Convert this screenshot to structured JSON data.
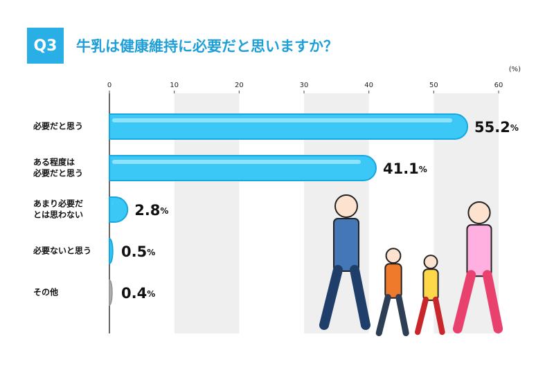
{
  "chart_data": {
    "type": "bar",
    "orientation": "horizontal",
    "badge": "Q3",
    "title": "牛乳は健康維持に必要だと思いますか？",
    "unit": "(%)",
    "categories": [
      [
        "必要だと思う"
      ],
      [
        "ある程度は",
        "必要だと思う"
      ],
      [
        "あまり必要だ",
        "とは思わない"
      ],
      [
        "必要ないと思う"
      ],
      [
        "その他"
      ]
    ],
    "values": [
      55.2,
      41.1,
      2.8,
      0.5,
      0.4
    ],
    "value_labels": [
      "55.2%",
      "41.1%",
      "2.8%",
      "0.5%",
      "0.4%"
    ],
    "colors": [
      "#3cc8f7",
      "#3cc8f7",
      "#3cc8f7",
      "#3cc8f7",
      "#b5b5b5"
    ],
    "xlim": [
      0,
      60
    ],
    "xticks": [
      0,
      10,
      20,
      30,
      40,
      50,
      60
    ],
    "grid": "bands"
  }
}
